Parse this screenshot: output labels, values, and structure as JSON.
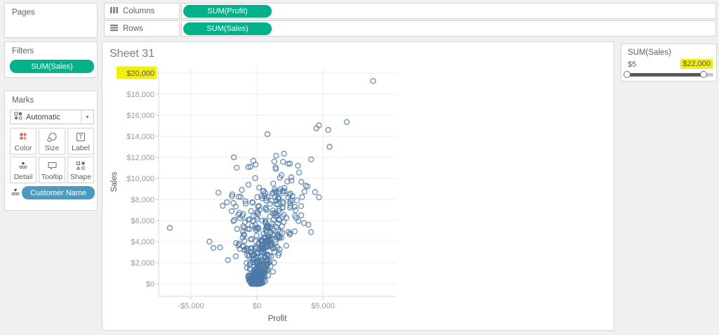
{
  "app": {
    "accent_green": "#00b18a",
    "accent_blue": "#4a9ac2",
    "highlight_yellow": "#f2ee12",
    "point_color": "#4e79a7",
    "background": "#f0f0f0"
  },
  "pages_card": {
    "title": "Pages"
  },
  "filters_card": {
    "title": "Filters",
    "pills": [
      "SUM(Sales)"
    ]
  },
  "marks_card": {
    "title": "Marks",
    "mark_type": "Automatic",
    "buttons": [
      {
        "label": "Color"
      },
      {
        "label": "Size"
      },
      {
        "label": "Label"
      },
      {
        "label": "Detail"
      },
      {
        "label": "Tooltip"
      },
      {
        "label": "Shape"
      }
    ],
    "encoding_pills": [
      {
        "label": "Customer Name",
        "role": "detail"
      }
    ]
  },
  "shelves": {
    "columns": {
      "label": "Columns",
      "pills": [
        "SUM(Profit)"
      ]
    },
    "rows": {
      "label": "Rows",
      "pills": [
        "SUM(Sales)"
      ]
    }
  },
  "sheet": {
    "title": "Sheet 31"
  },
  "filter_panel": {
    "title": "SUM(Sales)",
    "min_label": "$5",
    "max_label": "$22,000",
    "max_highlighted": true,
    "slider": {
      "min": 5,
      "max": 22000,
      "lower": 5,
      "upper": 22000
    }
  },
  "chart_data": {
    "type": "scatter",
    "title": "Sheet 31",
    "xlabel": "Profit",
    "ylabel": "Sales",
    "xlim": [
      -7450,
      10550
    ],
    "ylim": [
      -1250,
      20550
    ],
    "grid": true,
    "x_ticks": [
      {
        "value": -5000,
        "label": "-$5,000"
      },
      {
        "value": 0,
        "label": "$0"
      },
      {
        "value": 5000,
        "label": "$5,000"
      }
    ],
    "y_ticks": [
      {
        "value": 0,
        "label": "$0"
      },
      {
        "value": 2000,
        "label": "$2,000"
      },
      {
        "value": 4000,
        "label": "$4,000"
      },
      {
        "value": 6000,
        "label": "$6,000"
      },
      {
        "value": 8000,
        "label": "$8,000"
      },
      {
        "value": 10000,
        "label": "$10,000"
      },
      {
        "value": 12000,
        "label": "$12,000"
      },
      {
        "value": 14000,
        "label": "$14,000"
      },
      {
        "value": 16000,
        "label": "$16,000"
      },
      {
        "value": 18000,
        "label": "$18,000"
      },
      {
        "value": 20000,
        "label": "$20,000",
        "highlighted": true
      }
    ],
    "marker": {
      "shape": "open-circle",
      "radius": 3.5,
      "color": "#4e79a7",
      "opacity": 0.8
    },
    "outlier_points": [
      [
        8800,
        19250
      ],
      [
        6800,
        15350
      ],
      [
        5400,
        14600
      ],
      [
        4500,
        14750
      ],
      [
        4700,
        15050
      ],
      [
        5500,
        13000
      ],
      [
        800,
        14200
      ],
      [
        -1750,
        12000
      ],
      [
        2500,
        11400
      ],
      [
        3100,
        11200
      ],
      [
        2050,
        12350
      ],
      [
        1450,
        12150
      ],
      [
        -650,
        9400
      ],
      [
        2600,
        10100
      ],
      [
        1850,
        10300
      ],
      [
        2300,
        9700
      ],
      [
        3700,
        9300
      ],
      [
        4400,
        8700
      ],
      [
        -1900,
        8300
      ],
      [
        -1150,
        8900
      ],
      [
        -850,
        7600
      ],
      [
        -2600,
        7400
      ],
      [
        500,
        8800
      ],
      [
        1250,
        8650
      ],
      [
        -6600,
        5300
      ],
      [
        -3600,
        4000
      ],
      [
        -3300,
        3400
      ],
      [
        -2800,
        3450
      ],
      [
        -2200,
        2250
      ],
      [
        -1600,
        2600
      ],
      [
        -1350,
        3800
      ],
      [
        -950,
        4600
      ],
      [
        3900,
        5600
      ],
      [
        3350,
        6500
      ],
      [
        2850,
        7300
      ],
      [
        4100,
        4900
      ],
      [
        2450,
        8450
      ],
      [
        -450,
        6900
      ],
      [
        -1500,
        5200
      ],
      [
        3600,
        8750
      ],
      [
        4700,
        8200
      ]
    ],
    "cluster_generation": {
      "seed": 1337,
      "core": {
        "count": 500,
        "sales_max": 8800,
        "sales_power": 2.6,
        "profit_center_factor": 0.14,
        "spread_base": 240,
        "spread_factor": 0.18
      },
      "mid": {
        "count": 70,
        "sales_min": 3500,
        "sales_max": 11800,
        "profit_center_factor": 0.13,
        "spread": 1600
      }
    }
  }
}
